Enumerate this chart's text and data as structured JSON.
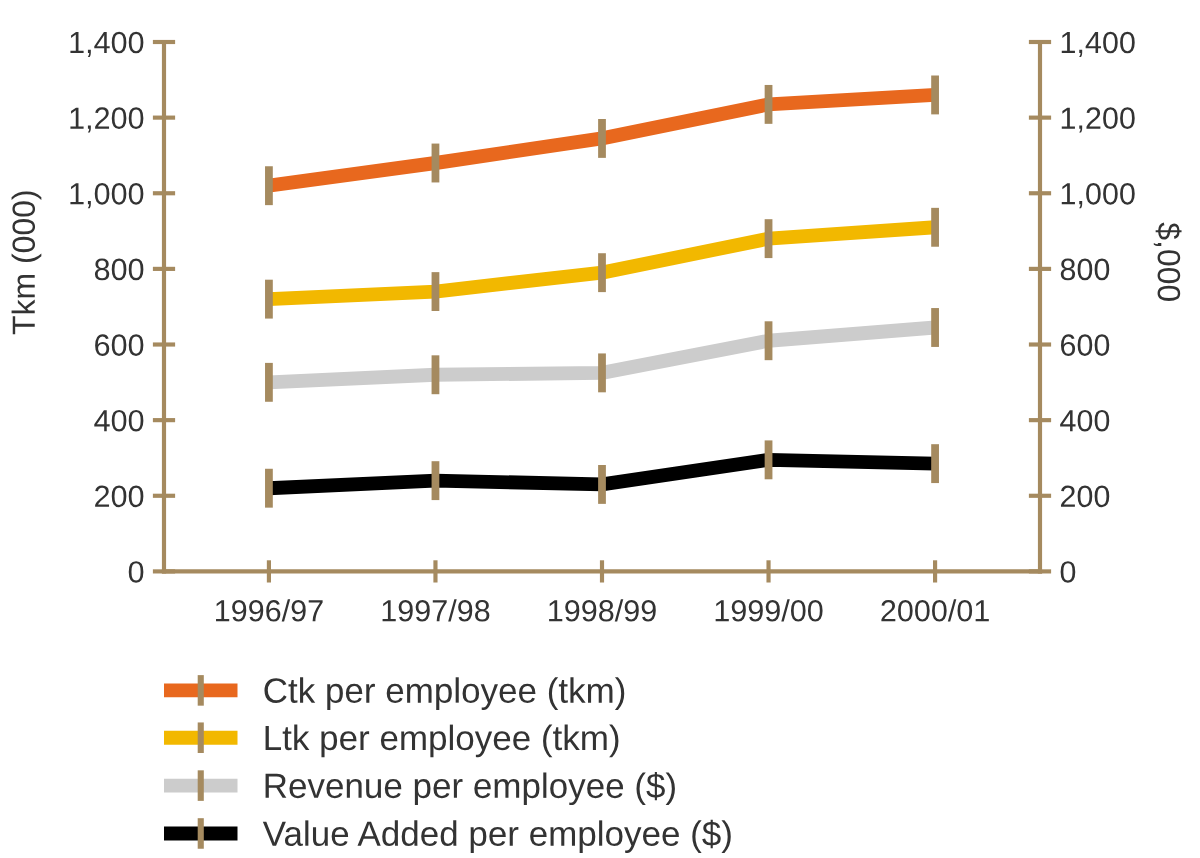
{
  "chart_data": {
    "type": "line",
    "ylabel": "Tkm (000)",
    "y2label": "$,000",
    "categories": [
      "1996/97",
      "1997/98",
      "1998/99",
      "1999/00",
      "2000/01"
    ],
    "series": [
      {
        "name": "Ctk per employee (tkm)",
        "color": "#e8681e",
        "values": [
          1020,
          1080,
          1145,
          1235,
          1260
        ]
      },
      {
        "name": "Ltk per employee (tkm)",
        "color": "#f2b800",
        "values": [
          720,
          740,
          790,
          880,
          910
        ]
      },
      {
        "name": "Revenue per employee ($)",
        "color": "#cccccc",
        "values": [
          500,
          520,
          525,
          610,
          645
        ]
      },
      {
        "name": "Value Added per employee ($)",
        "color": "#000000",
        "values": [
          220,
          240,
          230,
          295,
          285
        ]
      }
    ],
    "ylim": [
      0,
      1400
    ],
    "yticks": [
      0,
      200,
      400,
      600,
      800,
      {
        "value": 1000,
        "label": "1,000"
      },
      {
        "value": 1200,
        "label": "1,200"
      },
      {
        "value": 1400,
        "label": "1,400"
      }
    ],
    "y2lim": [
      0,
      1400
    ],
    "y2ticks": [
      0,
      200,
      400,
      600,
      800,
      {
        "value": 1000,
        "label": "1,000"
      },
      {
        "value": 1200,
        "label": "1,200"
      },
      {
        "value": 1400,
        "label": "1,400"
      }
    ],
    "legend": "bottom",
    "line_style": "solid"
  }
}
